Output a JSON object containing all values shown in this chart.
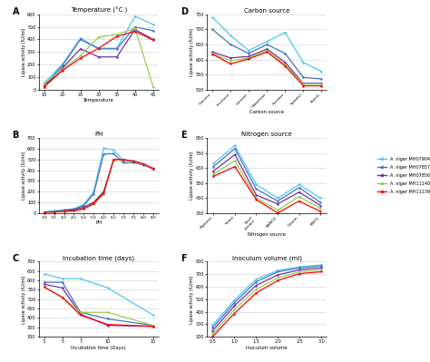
{
  "colors": {
    "light_blue": "#4DC8F0",
    "dark_blue": "#4472C4",
    "purple": "#7030A0",
    "green": "#92D050",
    "red": "#FF0000",
    "dark_blue2": "#003399"
  },
  "legend_labels": [
    "A. niger MH079049.1",
    "A. niger MH078571.1",
    "A. niger MH078565.1",
    "A. niger MH111400.1",
    "A. niger MH111398.1"
  ],
  "panel_A": {
    "title": "Temperature (°C )",
    "xlabel": "Temperature",
    "ylabel": "Lipase activity (IU/ml)",
    "ylim": [
      0,
      600
    ],
    "yticks": [
      0,
      100,
      200,
      300,
      400,
      500,
      600
    ],
    "x": [
      15,
      20,
      25,
      30,
      35,
      40,
      45
    ],
    "y_lb": [
      50,
      200,
      410,
      330,
      330,
      585,
      520
    ],
    "y_db": [
      30,
      190,
      400,
      325,
      325,
      500,
      470
    ],
    "y_p": [
      20,
      170,
      325,
      260,
      260,
      480,
      400
    ],
    "y_g": [
      50,
      160,
      270,
      420,
      440,
      490,
      20
    ],
    "y_r": [
      20,
      150,
      250,
      330,
      425,
      465,
      395
    ]
  },
  "panel_B": {
    "title": "PH",
    "xlabel": "PH",
    "ylabel": "Lipase activity (IU/ml)",
    "ylim": [
      0,
      700
    ],
    "yticks": [
      0,
      100,
      200,
      300,
      400,
      500,
      600,
      700
    ],
    "x": [
      3,
      3.5,
      4,
      4.5,
      5,
      5.5,
      6,
      6.5,
      7,
      7.5,
      8,
      8.5
    ],
    "y_lb": [
      10,
      20,
      30,
      40,
      80,
      200,
      605,
      590,
      490,
      490,
      460,
      420
    ],
    "y_db": [
      10,
      15,
      25,
      35,
      70,
      180,
      550,
      555,
      470,
      470,
      450,
      410
    ],
    "y_p": [
      10,
      10,
      20,
      30,
      55,
      100,
      200,
      495,
      500,
      480,
      455,
      410
    ],
    "y_g": [
      10,
      10,
      15,
      20,
      40,
      80,
      180,
      490,
      500,
      480,
      455,
      410
    ],
    "y_r": [
      10,
      10,
      15,
      20,
      40,
      90,
      185,
      500,
      500,
      485,
      460,
      415
    ]
  },
  "panel_C": {
    "title": "Incubation time (days)",
    "xlabel": "Incubation time (Days)",
    "ylabel": "Lipase activity (IU/ml)",
    "ylim": [
      300,
      700
    ],
    "yticks": [
      300,
      350,
      400,
      450,
      500,
      550,
      600,
      650,
      700
    ],
    "x": [
      3,
      5,
      7,
      10,
      15
    ],
    "y_lb": [
      635,
      610,
      610,
      560,
      415
    ],
    "y_db": [
      590,
      590,
      430,
      395,
      360
    ],
    "y_p": [
      580,
      560,
      420,
      360,
      355
    ],
    "y_g": [
      565,
      510,
      430,
      430,
      360
    ],
    "y_r": [
      565,
      510,
      415,
      365,
      355
    ]
  },
  "panel_D": {
    "title": "Carbon source",
    "xlabel": "Carbon source",
    "ylabel": "Lipase activity (IU/ml)",
    "ylim": [
      500,
      750
    ],
    "yticks": [
      500,
      550,
      600,
      650,
      700,
      750
    ],
    "x_labels": [
      "Glucose",
      "Fructose",
      "Lactose",
      "Galactose",
      "Sucrose",
      "Sorbitol",
      "Starch"
    ],
    "y_lb": [
      740,
      680,
      630,
      660,
      690,
      590,
      560
    ],
    "y_db": [
      700,
      650,
      620,
      650,
      620,
      540,
      535
    ],
    "y_p": [
      625,
      605,
      610,
      635,
      590,
      520,
      520
    ],
    "y_g": [
      620,
      595,
      605,
      630,
      582,
      518,
      518
    ],
    "y_r": [
      618,
      585,
      602,
      625,
      578,
      512,
      512
    ]
  },
  "panel_E": {
    "title": "Nitrogen source",
    "xlabel": "Nitrogen source",
    "ylabel": "Lipase activity (IU/ml)",
    "ylim": [
      350,
      850
    ],
    "yticks": [
      350,
      450,
      550,
      650,
      750,
      850
    ],
    "x_labels": [
      "Peptone",
      "Yeast",
      "Beef\nextract",
      "NaNO3",
      "Casein",
      "KNO3"
    ],
    "y_lb": [
      680,
      800,
      540,
      450,
      540,
      450
    ],
    "y_db": [
      660,
      780,
      510,
      430,
      520,
      420
    ],
    "y_p": [
      630,
      740,
      470,
      410,
      490,
      400
    ],
    "y_g": [
      610,
      700,
      450,
      370,
      460,
      380
    ],
    "y_r": [
      595,
      660,
      440,
      350,
      430,
      360
    ]
  },
  "panel_F": {
    "title": "Inoculum volume (ml)",
    "xlabel": "Inoculum volume",
    "ylabel": "Lipase activity (IU/ml)",
    "ylim": [
      200,
      800
    ],
    "yticks": [
      200,
      300,
      400,
      500,
      600,
      700,
      800
    ],
    "x": [
      0.5,
      1,
      1.5,
      2,
      2.5,
      3
    ],
    "y_lb": [
      290,
      490,
      660,
      730,
      760,
      775
    ],
    "y_db": [
      270,
      470,
      640,
      720,
      750,
      765
    ],
    "y_p": [
      245,
      445,
      610,
      695,
      735,
      750
    ],
    "y_g": [
      220,
      415,
      580,
      670,
      720,
      735
    ],
    "y_r": [
      200,
      385,
      550,
      650,
      705,
      720
    ]
  }
}
